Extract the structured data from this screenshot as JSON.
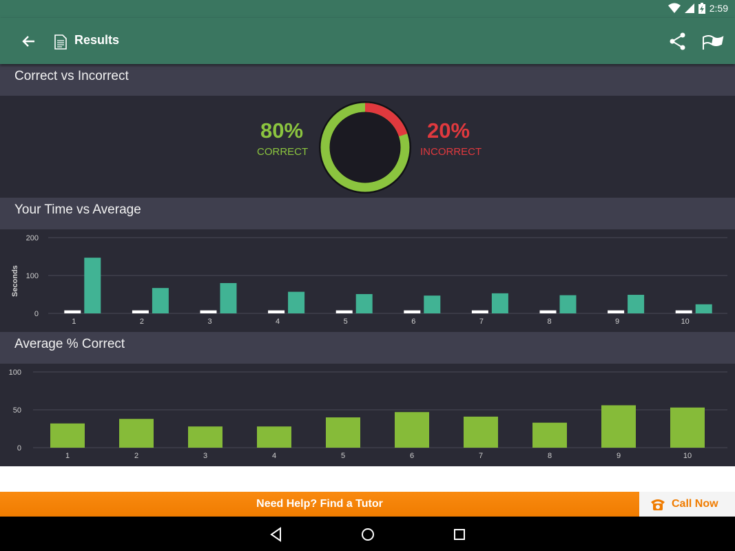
{
  "status_bar": {
    "time": "2:59",
    "icons": [
      "wifi-icon",
      "signal-icon",
      "battery-charging-icon"
    ]
  },
  "app_bar": {
    "title": "Results",
    "icons": [
      "back-arrow-icon",
      "document-icon",
      "share-icon",
      "flag-icon"
    ]
  },
  "correct_vs_incorrect": {
    "header": "Correct vs Incorrect",
    "correct_pct": "80%",
    "correct_label": "CORRECT",
    "incorrect_pct": "20%",
    "incorrect_label": "INCORRECT",
    "correct_fraction": 0.8,
    "colors": {
      "correct": "#8bc43f",
      "incorrect": "#e0393e"
    }
  },
  "time_vs_average": {
    "header": "Your Time vs Average",
    "chart_data": {
      "type": "bar",
      "categories": [
        "1",
        "2",
        "3",
        "4",
        "5",
        "6",
        "7",
        "8",
        "9",
        "10"
      ],
      "series": [
        {
          "values": [
            8,
            8,
            8,
            8,
            8,
            8,
            8,
            8,
            8,
            8
          ],
          "color": "#ffffff"
        },
        {
          "values": [
            147,
            67,
            80,
            57,
            51,
            47,
            53,
            48,
            49,
            24
          ],
          "color": "#41b394"
        }
      ],
      "ylabel": "Seconds",
      "yticks": [
        0,
        100,
        200
      ],
      "ylim": [
        0,
        200
      ],
      "grid": true
    }
  },
  "average_correct": {
    "header": "Average % Correct",
    "chart_data": {
      "type": "bar",
      "categories": [
        "1",
        "2",
        "3",
        "4",
        "5",
        "6",
        "7",
        "8",
        "9",
        "10"
      ],
      "values": [
        32,
        38,
        28,
        28,
        40,
        47,
        41,
        33,
        56,
        53
      ],
      "color": "#86bb39",
      "yticks": [
        0,
        50,
        100
      ],
      "ylim": [
        0,
        100
      ],
      "grid": true
    }
  },
  "help_bar": {
    "label": "Need Help? Find a Tutor"
  },
  "call_now": {
    "label": "Call Now",
    "icon": "phone-icon"
  },
  "nav_bar": {
    "icons": [
      "nav-back-icon",
      "nav-home-icon",
      "nav-recents-icon"
    ]
  }
}
